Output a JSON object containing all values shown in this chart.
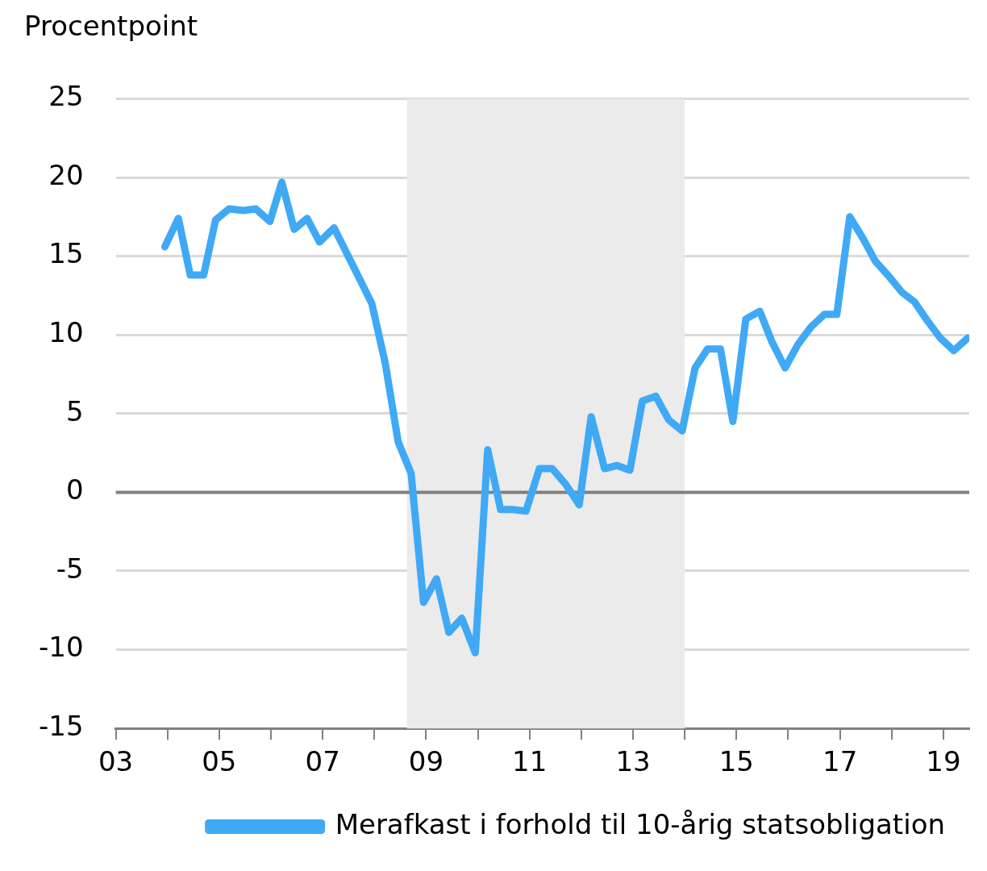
{
  "chart_data": {
    "type": "line",
    "ylabel": "Procentpoint",
    "x": [
      2003.95,
      2004.21,
      2004.44,
      2004.7,
      2004.93,
      2005.19,
      2005.47,
      2005.71,
      2005.98,
      2006.21,
      2006.45,
      2006.7,
      2006.94,
      2007.22,
      2007.48,
      2007.95,
      2008.21,
      2008.46,
      2008.71,
      2008.95,
      2009.2,
      2009.44,
      2009.69,
      2009.95,
      2010.19,
      2010.44,
      2010.68,
      2010.93,
      2011.19,
      2011.44,
      2011.7,
      2011.96,
      2012.19,
      2012.45,
      2012.69,
      2012.94,
      2013.18,
      2013.44,
      2013.69,
      2013.95,
      2014.2,
      2014.44,
      2014.69,
      2014.93,
      2015.18,
      2015.45,
      2015.68,
      2015.94,
      2016.19,
      2016.44,
      2016.7,
      2016.94,
      2017.19,
      2017.45,
      2017.68,
      2017.95,
      2018.2,
      2018.44,
      2018.69,
      2018.94,
      2019.2,
      2019.47
    ],
    "series": [
      {
        "name": "Merafkast i forhold til 10-årig statsobligation",
        "color": "#3fa9f5",
        "values": [
          15.6,
          17.4,
          13.8,
          13.8,
          17.3,
          18.0,
          17.9,
          18.0,
          17.2,
          19.7,
          16.7,
          17.4,
          15.9,
          16.8,
          15.1,
          12.0,
          8.2,
          3.2,
          1.2,
          -7.0,
          -5.5,
          -8.9,
          -8.0,
          -10.2,
          2.7,
          -1.1,
          -1.1,
          -1.2,
          1.5,
          1.5,
          0.5,
          -0.8,
          4.8,
          1.5,
          1.7,
          1.4,
          5.8,
          6.1,
          4.6,
          3.9,
          7.9,
          9.1,
          9.1,
          4.5,
          11.0,
          11.5,
          9.6,
          7.9,
          9.4,
          10.5,
          11.3,
          11.3,
          17.5,
          16.1,
          14.7,
          13.7,
          12.7,
          12.1,
          10.9,
          9.8,
          9.0,
          9.8
        ]
      }
    ],
    "xlim": [
      2003,
      2019.5
    ],
    "xticks": [
      {
        "value": 2003,
        "label": "03"
      },
      {
        "value": 2004,
        "label": null
      },
      {
        "value": 2005,
        "label": "05"
      },
      {
        "value": 2006,
        "label": null
      },
      {
        "value": 2007,
        "label": "07"
      },
      {
        "value": 2008,
        "label": null
      },
      {
        "value": 2009,
        "label": "09"
      },
      {
        "value": 2010,
        "label": null
      },
      {
        "value": 2011,
        "label": "11"
      },
      {
        "value": 2012,
        "label": null
      },
      {
        "value": 2013,
        "label": "13"
      },
      {
        "value": 2014,
        "label": null
      },
      {
        "value": 2015,
        "label": "15"
      },
      {
        "value": 2016,
        "label": null
      },
      {
        "value": 2017,
        "label": "17"
      },
      {
        "value": 2018,
        "label": null
      },
      {
        "value": 2019,
        "label": "19"
      }
    ],
    "ylim": [
      -15,
      25
    ],
    "yticks": [
      -15,
      -10,
      -5,
      0,
      5,
      10,
      15,
      20,
      25
    ],
    "grid": "y",
    "legend": "bottom",
    "marker": "none",
    "line_style": "solid",
    "ref_lines": [
      {
        "axis": "y",
        "value": 0,
        "color": "#808080"
      }
    ],
    "bands": [
      {
        "axis": "x",
        "from": 2008.63,
        "to": 2014.0,
        "color": "#ebebeb"
      }
    ]
  }
}
